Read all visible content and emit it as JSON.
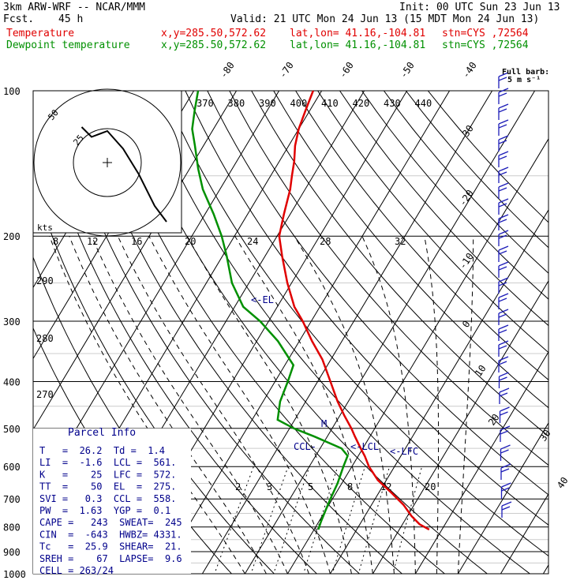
{
  "header": {
    "model": "3km ARW-WRF -- NCAR/MMM",
    "init": "Init: 00 UTC Sun 23 Jun 13",
    "fcst_label": "Fcst.",
    "fcst_value": "45 h",
    "valid": "Valid: 21 UTC Mon 24 Jun 13 (15 MDT Mon 24 Jun 13)",
    "temp_label": "Temperature",
    "dew_label": "Dewpoint temperature",
    "xy": "x,y=285.50,572.62",
    "latlon": "lat,lon= 41.16,-104.81",
    "stn": "stn=CYS ,72564"
  },
  "colors": {
    "temperature": "#e00000",
    "dewpoint": "#009000",
    "parcel_info": "#00008b",
    "barbs": "#1c1cb8"
  },
  "barb_legend": {
    "title": "Full barb:",
    "unit": "5 m s⁻¹"
  },
  "hodograph": {
    "rings": [
      "25",
      "50"
    ],
    "unit": "kts"
  },
  "levels": {
    "el": "<-EL",
    "ccl": "CCL-",
    "lcl": "<-LCL",
    "lfc": "<-LFC",
    "m": "M"
  },
  "parcel_info": {
    "title": "Parcel Info",
    "lines": [
      "T   =  26.2  Td =  1.4",
      "LI  =  -1.6  LCL =  561.",
      "K   =    25  LFC =  572.",
      "TT  =    50  EL  =  275.",
      "SVI =   0.3  CCL =  558.",
      "PW  =  1.63  YGP =  0.1",
      "CAPE =   243  SWEAT=  245",
      "CIN  =  -643  HWBZ= 4331.",
      "Tc   =  25.9  SHEAR=  21.",
      "SREH =    67  LAPSE=  9.6",
      "CELL = 263/24"
    ]
  },
  "chart_data": {
    "type": "line",
    "title": "",
    "xlabel": "",
    "ylabel": "",
    "y_scale": "log",
    "ylim": [
      1000,
      100
    ],
    "pressure_ticks": [
      100,
      200,
      300,
      400,
      500,
      600,
      700,
      800,
      900,
      1000
    ],
    "isotherm_labels_top": [
      -80,
      -70,
      -60,
      -50,
      -40
    ],
    "isotherm_labels_right": [
      -30,
      -20,
      -10,
      0,
      10,
      20,
      30,
      40
    ],
    "theta_labels": [
      370,
      380,
      390,
      400,
      410,
      420,
      430,
      440
    ],
    "theta_labels_left": [
      290,
      280,
      270
    ],
    "mixing_ratio_labels_top": [
      8,
      12,
      16,
      20,
      24,
      28,
      32
    ],
    "mixing_ratio_labels_low": [
      2,
      3,
      5,
      8,
      12,
      20
    ],
    "series": [
      {
        "name": "Temperature",
        "points": [
          [
            810,
            27.0
          ],
          [
            790,
            24.0
          ],
          [
            760,
            21.0
          ],
          [
            720,
            17.5
          ],
          [
            680,
            13.0
          ],
          [
            640,
            8.0
          ],
          [
            600,
            4.0
          ],
          [
            570,
            1.5
          ],
          [
            550,
            -0.5
          ],
          [
            520,
            -3.5
          ],
          [
            500,
            -5.5
          ],
          [
            470,
            -9.0
          ],
          [
            440,
            -12.5
          ],
          [
            400,
            -17.0
          ],
          [
            360,
            -22.0
          ],
          [
            330,
            -27.0
          ],
          [
            300,
            -32.0
          ],
          [
            280,
            -36.0
          ],
          [
            250,
            -41.0
          ],
          [
            220,
            -46.0
          ],
          [
            200,
            -49.5
          ],
          [
            180,
            -51.5
          ],
          [
            160,
            -53.5
          ],
          [
            150,
            -55.0
          ],
          [
            140,
            -56.5
          ],
          [
            130,
            -58.5
          ],
          [
            120,
            -60.0
          ],
          [
            110,
            -61.0
          ],
          [
            100,
            -62.0
          ]
        ]
      },
      {
        "name": "Dewpoint temperature",
        "points": [
          [
            810,
            1.0
          ],
          [
            780,
            0.5
          ],
          [
            740,
            0.0
          ],
          [
            700,
            -0.5
          ],
          [
            650,
            -1.0
          ],
          [
            600,
            -2.0
          ],
          [
            570,
            -2.5
          ],
          [
            550,
            -5.0
          ],
          [
            520,
            -13.0
          ],
          [
            500,
            -19.0
          ],
          [
            480,
            -24.0
          ],
          [
            440,
            -26.0
          ],
          [
            400,
            -27.0
          ],
          [
            370,
            -28.0
          ],
          [
            330,
            -35.0
          ],
          [
            300,
            -42.0
          ],
          [
            280,
            -48.0
          ],
          [
            250,
            -54.0
          ],
          [
            220,
            -59.0
          ],
          [
            200,
            -63.0
          ],
          [
            180,
            -68.0
          ],
          [
            160,
            -74.0
          ],
          [
            145,
            -78.0
          ],
          [
            130,
            -82.0
          ],
          [
            120,
            -85.0
          ],
          [
            110,
            -87.0
          ],
          [
            100,
            -89.0
          ]
        ]
      }
    ],
    "hodograph": [
      [
        -1.3,
        1.8
      ],
      [
        -0.8,
        1.3
      ],
      [
        0.0,
        1.6
      ],
      [
        0.8,
        0.7
      ],
      [
        1.6,
        -0.6
      ],
      [
        2.4,
        -2.2
      ],
      [
        3.0,
        -3.0
      ]
    ]
  }
}
